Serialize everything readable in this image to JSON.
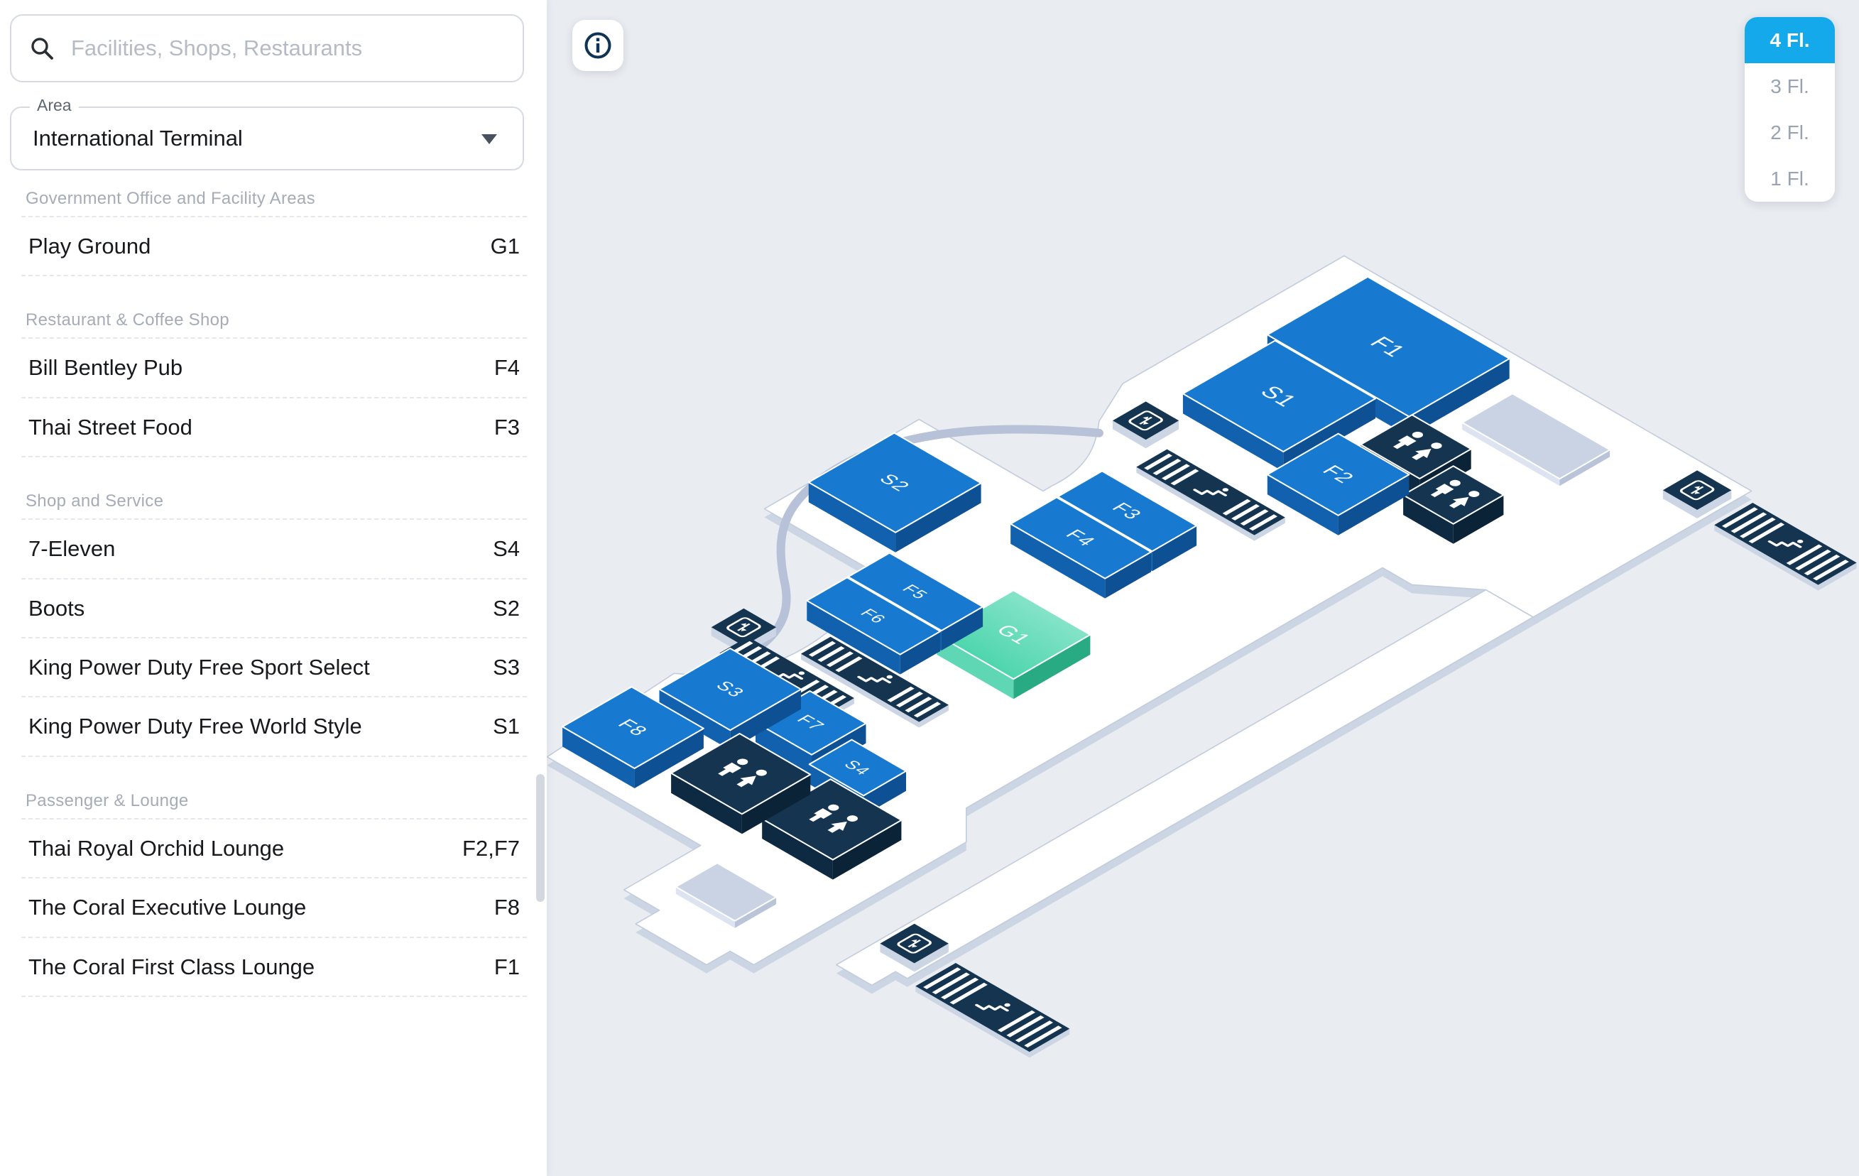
{
  "sidebar": {
    "search": {
      "placeholder": "Facilities, Shops, Restaurants"
    },
    "area": {
      "label": "Area",
      "value": "International Terminal"
    },
    "sections": [
      {
        "title": "Government Office and Facility Areas",
        "items": [
          {
            "name": "Play Ground",
            "code": "G1"
          }
        ]
      },
      {
        "title": "Restaurant & Coffee Shop",
        "items": [
          {
            "name": "Bill Bentley Pub",
            "code": "F4"
          },
          {
            "name": "Thai Street Food",
            "code": "F3"
          }
        ]
      },
      {
        "title": "Shop and Service",
        "items": [
          {
            "name": "7-Eleven",
            "code": "S4"
          },
          {
            "name": "Boots",
            "code": "S2"
          },
          {
            "name": "King Power Duty Free Sport Select",
            "code": "S3"
          },
          {
            "name": "King Power Duty Free World Style",
            "code": "S1"
          }
        ]
      },
      {
        "title": "Passenger & Lounge",
        "items": [
          {
            "name": "Thai Royal Orchid Lounge",
            "code": "F2,F7"
          },
          {
            "name": "The Coral Executive Lounge",
            "code": "F8"
          },
          {
            "name": "The Coral First Class Lounge",
            "code": "F1"
          }
        ]
      }
    ]
  },
  "floors": {
    "options": [
      "4 Fl.",
      "3 Fl.",
      "2 Fl.",
      "1 Fl."
    ],
    "active": "4 Fl."
  },
  "info_button": {
    "icon": "info-icon"
  },
  "palette": {
    "bg": "#e9ecf1",
    "floor": "#ffffff",
    "floorSide": "#ccd5e3",
    "floorStroke": "#c2ccdc",
    "road": "#b7c1d7",
    "blue": "#1779cf",
    "blueSideV": "#1161ae",
    "blueSideU": "#0d5194",
    "navy": "#143450",
    "navySideV": "#0e2a42",
    "navySideU": "#0b2337",
    "gray": "#c9d3e4",
    "graySideV": "#dde3f0",
    "graySideU": "#b9c4d8",
    "tealA": "#33cf9f",
    "tealB": "#a0ead6",
    "tealSideV": "#5fd7b4",
    "tealSideU": "#28ab83",
    "accent": "#14a9ea",
    "iconNavy": "#0e3356",
    "white": "#ffffff"
  },
  "map": {
    "iso": {
      "a": 0.8314,
      "b": 0.48,
      "ox": 516,
      "oy": 185
    },
    "slabs": [
      {
        "name": "main-floor",
        "h": 12,
        "cmds": [
          [
            "M",
            560,
            -170
          ],
          [
            "L",
            1250,
            -170
          ],
          [
            "L",
            1250,
            200
          ],
          [
            "L",
            1170,
            200
          ],
          [
            "L",
            1100,
            255
          ],
          [
            "L",
            1050,
            255
          ],
          [
            "L",
            1050,
            960
          ],
          [
            "L",
            1100,
            1010
          ],
          [
            "L",
            1100,
            1370
          ],
          [
            "L",
            1060,
            1370
          ],
          [
            "L",
            1060,
            1410
          ],
          [
            "L",
            940,
            1410
          ],
          [
            "L",
            940,
            1370
          ],
          [
            "L",
            880,
            1370
          ],
          [
            "L",
            880,
            1240
          ],
          [
            "L",
            620,
            1240
          ],
          [
            "L",
            605,
            1010
          ],
          [
            "C",
            640,
            985,
            678,
            945,
            678,
            865
          ],
          [
            "C",
            678,
            790,
            652,
            762,
            650,
            708
          ],
          [
            "L",
            650,
            692
          ],
          [
            "L",
            440,
            692
          ],
          [
            "L",
            440,
            430
          ],
          [
            "L",
            650,
            430
          ],
          [
            "L",
            650,
            415
          ],
          [
            "C",
            655,
            355,
            625,
            315,
            595,
            280
          ],
          [
            "L",
            560,
            205
          ],
          [
            "Z"
          ]
        ]
      },
      {
        "name": "walkway",
        "h": 12,
        "cmds": [
          [
            "M",
            1170,
            200
          ],
          [
            "L",
            1250,
            200
          ],
          [
            "L",
            1250,
            1260
          ],
          [
            "L",
            1230,
            1260
          ],
          [
            "L",
            1230,
            1300
          ],
          [
            "L",
            1170,
            1300
          ],
          [
            "Z"
          ]
        ]
      }
    ],
    "road": {
      "cmds": [
        [
          "M",
          600,
          285
        ],
        [
          "C",
          505,
          355,
          432,
          440,
          430,
          545
        ],
        [
          "C",
          428,
          650,
          470,
          705,
          552,
          770
        ],
        [
          "C",
          615,
          818,
          635,
          872,
          625,
          945
        ]
      ]
    },
    "blocks": [
      {
        "label": "F1",
        "color": "blue",
        "u0": 640,
        "v0": -130,
        "u1": 880,
        "v1": 40,
        "fs": 34
      },
      {
        "label": "S1",
        "color": "blue",
        "u0": 655,
        "v0": 42,
        "u1": 825,
        "v1": 198,
        "fs": 34
      },
      {
        "label": "F2",
        "color": "blue",
        "u0": 845,
        "v0": 125,
        "u1": 965,
        "v1": 245,
        "fs": 30
      },
      {
        "label": "",
        "color": "navy",
        "u0": 880,
        "v0": 35,
        "u1": 980,
        "v1": 122,
        "icon": "wc"
      },
      {
        "label": "",
        "color": "navy",
        "u0": 990,
        "v0": 75,
        "u1": 1075,
        "v1": 160,
        "icon": "wc"
      },
      {
        "label": "",
        "color": "gray",
        "u0": 915,
        "v0": -100,
        "u1": 1080,
        "v1": -15,
        "h": 10
      },
      {
        "label": "F3",
        "color": "blue",
        "u0": 700,
        "v0": 380,
        "u1": 860,
        "v1": 455,
        "fs": 28
      },
      {
        "label": "F4",
        "color": "blue",
        "u0": 700,
        "v0": 457,
        "u1": 860,
        "v1": 535,
        "fs": 28
      },
      {
        "label": "G1",
        "color": "teal",
        "u0": 800,
        "v0": 630,
        "u1": 930,
        "v1": 760,
        "fs": 30
      },
      {
        "label": "F5",
        "color": "blue",
        "u0": 640,
        "v0": 680,
        "u1": 798,
        "v1": 750,
        "fs": 24
      },
      {
        "label": "F6",
        "color": "blue",
        "u0": 640,
        "v0": 752,
        "u1": 798,
        "v1": 820,
        "fs": 24
      },
      {
        "label": "S2",
        "color": "blue",
        "u0": 468,
        "v0": 500,
        "u1": 615,
        "v1": 645,
        "fs": 28
      },
      {
        "label": "S3",
        "color": "blue",
        "u0": 645,
        "v0": 955,
        "u1": 765,
        "v1": 1075,
        "fs": 26
      },
      {
        "label": "F7",
        "color": "blue",
        "u0": 775,
        "v0": 950,
        "u1": 870,
        "v1": 1042,
        "fs": 26
      },
      {
        "label": "S4",
        "color": "blue",
        "u0": 882,
        "v0": 986,
        "u1": 974,
        "v1": 1058,
        "fs": 24
      },
      {
        "label": "",
        "color": "navy",
        "u0": 778,
        "v0": 1072,
        "u1": 898,
        "v1": 1188,
        "icon": "wc"
      },
      {
        "label": "",
        "color": "navy",
        "u0": 922,
        "v0": 1062,
        "u1": 1042,
        "v1": 1178,
        "icon": "wc"
      },
      {
        "label": "F8",
        "color": "blue",
        "u0": 618,
        "v0": 1095,
        "u1": 740,
        "v1": 1212,
        "fs": 28
      },
      {
        "label": "",
        "color": "gray",
        "u0": 930,
        "v0": 1262,
        "u1": 1030,
        "v1": 1332,
        "h": 10
      }
    ],
    "escalators": [
      {
        "u0": 700,
        "v0": 270,
        "u1": 900,
        "v1": 322,
        "base": 12
      },
      {
        "u0": 690,
        "v0": 830,
        "u1": 890,
        "v1": 880,
        "base": 12
      },
      {
        "u0": 620,
        "v0": 900,
        "u1": 800,
        "v1": 948,
        "base": 12
      },
      {
        "u0": 1262,
        "v0": -160,
        "u1": 1438,
        "v1": -95,
        "base": 0
      },
      {
        "u0": 1262,
        "v0": 1190,
        "u1": 1455,
        "v1": 1258,
        "base": 0
      }
    ],
    "elevators": [
      {
        "u0": 612,
        "v0": 218,
        "u1": 668,
        "v1": 274
      },
      {
        "u0": 575,
        "v0": 862,
        "u1": 630,
        "v1": 917
      },
      {
        "u0": 1180,
        "v0": -148,
        "u1": 1238,
        "v1": -90
      },
      {
        "u0": 1182,
        "v0": 1180,
        "u1": 1240,
        "v1": 1238
      }
    ]
  }
}
